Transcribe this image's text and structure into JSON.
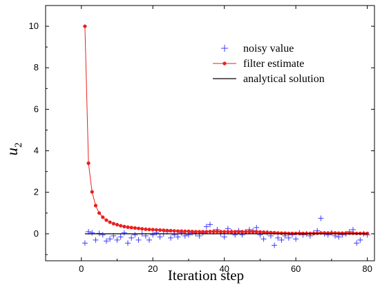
{
  "chart_data": {
    "type": "scatter",
    "xlabel": "Iteration step",
    "ylabel": "u",
    "ylabel_subscript": "2",
    "xlim": [
      -10,
      82
    ],
    "ylim": [
      -1.3,
      11
    ],
    "xticks": [
      0,
      20,
      40,
      60,
      80
    ],
    "yticks": [
      0,
      2,
      4,
      6,
      8,
      10
    ],
    "legend_position": "top-right",
    "grid": false,
    "series": [
      {
        "name": "noisy value",
        "kind": "marker-plus",
        "color": "#3b3bff",
        "x": [
          1,
          2,
          3,
          4,
          5,
          6,
          7,
          8,
          9,
          10,
          11,
          12,
          13,
          14,
          15,
          16,
          17,
          18,
          19,
          20,
          21,
          22,
          23,
          24,
          25,
          26,
          27,
          28,
          29,
          30,
          31,
          32,
          33,
          34,
          35,
          36,
          37,
          38,
          39,
          40,
          41,
          42,
          43,
          44,
          45,
          46,
          47,
          48,
          49,
          50,
          51,
          52,
          53,
          54,
          55,
          56,
          57,
          58,
          59,
          60,
          61,
          62,
          63,
          64,
          65,
          66,
          67,
          68,
          69,
          70,
          71,
          72,
          73,
          74,
          75,
          76,
          77,
          78,
          79,
          80
        ],
        "y": [
          -0.45,
          0.1,
          0.05,
          -0.3,
          0.02,
          -0.05,
          -0.35,
          -0.25,
          -0.1,
          -0.3,
          -0.15,
          0.05,
          -0.45,
          -0.2,
          -0.05,
          -0.3,
          0.0,
          -0.1,
          -0.3,
          -0.05,
          0.05,
          -0.15,
          0.0,
          0.1,
          -0.2,
          -0.05,
          -0.15,
          0.05,
          -0.1,
          -0.05,
          0.05,
          0.0,
          -0.1,
          0.05,
          0.35,
          0.45,
          0.1,
          0.2,
          0.0,
          -0.15,
          0.25,
          0.1,
          -0.05,
          0.15,
          -0.05,
          0.1,
          0.2,
          0.15,
          0.3,
          -0.05,
          -0.25,
          0.05,
          -0.1,
          -0.55,
          -0.2,
          -0.3,
          -0.1,
          -0.2,
          -0.05,
          -0.25,
          0.05,
          -0.05,
          0.0,
          -0.1,
          0.05,
          0.15,
          0.75,
          0.0,
          -0.05,
          0.05,
          -0.1,
          -0.15,
          -0.05,
          0.0,
          0.1,
          0.2,
          -0.45,
          -0.3,
          0.0,
          -0.05
        ]
      },
      {
        "name": "filter estimate",
        "kind": "line-with-dots",
        "color": "#e8201e",
        "x": [
          1,
          2,
          3,
          4,
          5,
          6,
          7,
          8,
          9,
          10,
          11,
          12,
          13,
          14,
          15,
          16,
          17,
          18,
          19,
          20,
          21,
          22,
          23,
          24,
          25,
          26,
          27,
          28,
          29,
          30,
          31,
          32,
          33,
          34,
          35,
          36,
          37,
          38,
          39,
          40,
          41,
          42,
          43,
          44,
          45,
          46,
          47,
          48,
          49,
          50,
          51,
          52,
          53,
          54,
          55,
          56,
          57,
          58,
          59,
          60,
          61,
          62,
          63,
          64,
          65,
          66,
          67,
          68,
          69,
          70,
          71,
          72,
          73,
          74,
          75,
          76,
          77,
          78,
          79,
          80
        ],
        "y": [
          10.0,
          3.4,
          2.02,
          1.36,
          1.0,
          0.8,
          0.66,
          0.56,
          0.49,
          0.44,
          0.39,
          0.35,
          0.32,
          0.3,
          0.28,
          0.26,
          0.24,
          0.22,
          0.21,
          0.2,
          0.19,
          0.18,
          0.17,
          0.16,
          0.15,
          0.14,
          0.13,
          0.13,
          0.12,
          0.12,
          0.11,
          0.1,
          0.1,
          0.1,
          0.1,
          0.11,
          0.11,
          0.11,
          0.1,
          0.1,
          0.1,
          0.1,
          0.1,
          0.1,
          0.1,
          0.1,
          0.1,
          0.1,
          0.1,
          0.09,
          0.08,
          0.07,
          0.06,
          0.05,
          0.04,
          0.03,
          0.03,
          0.02,
          0.02,
          0.02,
          0.02,
          0.02,
          0.02,
          0.02,
          0.02,
          0.03,
          0.04,
          0.04,
          0.04,
          0.04,
          0.04,
          0.03,
          0.03,
          0.03,
          0.03,
          0.03,
          0.02,
          0.02,
          0.02,
          0.02
        ]
      },
      {
        "name": "analytical solution",
        "kind": "line",
        "color": "#000000",
        "x": [
          1,
          80
        ],
        "y": [
          0,
          0
        ]
      }
    ]
  }
}
